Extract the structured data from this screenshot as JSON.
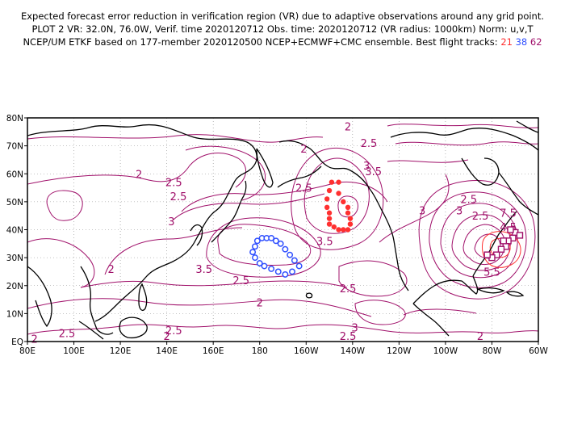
{
  "header": {
    "line1": "Expected forecast error reduction in verification region (VR) due to adaptive observations around any grid point.",
    "line2": "PLOT 2 VR: 32.0N, 76.0W, Verif. time 2020120712 Obs. time: 2020120712 (VR radius: 1000km) Norm: u,v,T",
    "line3_prefix": "NCEP/UM ETKF based on 177-member 2020120500 NCEP+ECMWF+CMC ensemble. Best flight tracks: ",
    "track_red": "21",
    "track_blue": "38",
    "track_purple": "62"
  },
  "map": {
    "lat_labels": [
      "80N",
      "70N",
      "60N",
      "50N",
      "40N",
      "30N",
      "20N",
      "10N",
      "EQ"
    ],
    "lon_labels": [
      "80E",
      "100E",
      "120E",
      "140E",
      "160E",
      "180",
      "160W",
      "140W",
      "120W",
      "100W",
      "80W",
      "60W"
    ],
    "colors": {
      "contour": "#a0106a",
      "coast": "#000000",
      "grid": "#888888",
      "track_red": "#ff3030",
      "track_blue": "#3050ff",
      "track_purple": "#a0106a"
    },
    "contour_labels": [
      {
        "text": "2",
        "lon": 218,
        "lat": 77
      },
      {
        "text": "2.5",
        "lon": 227,
        "lat": 71
      },
      {
        "text": "2",
        "lon": 199,
        "lat": 69
      },
      {
        "text": "3",
        "lon": 226,
        "lat": 63
      },
      {
        "text": "3.5",
        "lon": 229,
        "lat": 61
      },
      {
        "text": "2",
        "lon": 128,
        "lat": 60
      },
      {
        "text": "2.5",
        "lon": 143,
        "lat": 57
      },
      {
        "text": "2.5",
        "lon": 145,
        "lat": 52
      },
      {
        "text": "2.5",
        "lon": 199,
        "lat": 55
      },
      {
        "text": "2.5",
        "lon": 270,
        "lat": 51
      },
      {
        "text": "3",
        "lon": 142,
        "lat": 43
      },
      {
        "text": "3",
        "lon": 250,
        "lat": 47
      },
      {
        "text": "2.5",
        "lon": 275,
        "lat": 45
      },
      {
        "text": "3",
        "lon": 266,
        "lat": 47
      },
      {
        "text": "7.5",
        "lon": 287,
        "lat": 46
      },
      {
        "text": "4.5",
        "lon": 287,
        "lat": 41
      },
      {
        "text": "3.5",
        "lon": 208,
        "lat": 36
      },
      {
        "text": "3.5",
        "lon": 156,
        "lat": 26
      },
      {
        "text": "2",
        "lon": 116,
        "lat": 26
      },
      {
        "text": "2.5",
        "lon": 172,
        "lat": 22
      },
      {
        "text": "5.5",
        "lon": 280,
        "lat": 25
      },
      {
        "text": "2.5",
        "lon": 218,
        "lat": 19
      },
      {
        "text": "2",
        "lon": 180,
        "lat": 14
      },
      {
        "text": "2.5",
        "lon": 143,
        "lat": 4
      },
      {
        "text": "2.5",
        "lon": 97,
        "lat": 3
      },
      {
        "text": "2",
        "lon": 83,
        "lat": 1
      },
      {
        "text": "2",
        "lon": 140,
        "lat": 2
      },
      {
        "text": "3",
        "lon": 221,
        "lat": 5
      },
      {
        "text": "2.5",
        "lon": 218,
        "lat": 2
      },
      {
        "text": "2",
        "lon": 275,
        "lat": 2
      }
    ],
    "red_track": [
      {
        "lon": 211,
        "lat": 57
      },
      {
        "lon": 214,
        "lat": 57
      },
      {
        "lon": 210,
        "lat": 54
      },
      {
        "lon": 214,
        "lat": 53
      },
      {
        "lon": 209,
        "lat": 51
      },
      {
        "lon": 216,
        "lat": 50
      },
      {
        "lon": 209,
        "lat": 48
      },
      {
        "lon": 218,
        "lat": 48
      },
      {
        "lon": 210,
        "lat": 46
      },
      {
        "lon": 218,
        "lat": 46
      },
      {
        "lon": 210,
        "lat": 44
      },
      {
        "lon": 219,
        "lat": 44
      },
      {
        "lon": 210,
        "lat": 42
      },
      {
        "lon": 219,
        "lat": 42
      },
      {
        "lon": 212,
        "lat": 41
      },
      {
        "lon": 218,
        "lat": 40
      },
      {
        "lon": 214,
        "lat": 40
      },
      {
        "lon": 216,
        "lat": 40
      }
    ],
    "blue_track": [
      {
        "lon": 179,
        "lat": 36
      },
      {
        "lon": 181,
        "lat": 37
      },
      {
        "lon": 183,
        "lat": 37
      },
      {
        "lon": 185,
        "lat": 37
      },
      {
        "lon": 187,
        "lat": 36
      },
      {
        "lon": 189,
        "lat": 35
      },
      {
        "lon": 191,
        "lat": 33
      },
      {
        "lon": 193,
        "lat": 31
      },
      {
        "lon": 195,
        "lat": 29
      },
      {
        "lon": 197,
        "lat": 27
      },
      {
        "lon": 178,
        "lat": 34
      },
      {
        "lon": 177,
        "lat": 32
      },
      {
        "lon": 178,
        "lat": 30
      },
      {
        "lon": 180,
        "lat": 28
      },
      {
        "lon": 182,
        "lat": 27
      },
      {
        "lon": 185,
        "lat": 26
      },
      {
        "lon": 188,
        "lat": 25
      },
      {
        "lon": 191,
        "lat": 24
      },
      {
        "lon": 194,
        "lat": 25
      }
    ],
    "purple_track": [
      {
        "lon": 290,
        "lat": 39
      },
      {
        "lon": 288,
        "lat": 40
      },
      {
        "lon": 292,
        "lat": 38
      },
      {
        "lon": 289,
        "lat": 37
      },
      {
        "lon": 287,
        "lat": 36
      },
      {
        "lon": 286,
        "lat": 34
      },
      {
        "lon": 284,
        "lat": 33
      },
      {
        "lon": 282,
        "lat": 31
      },
      {
        "lon": 280,
        "lat": 30
      },
      {
        "lon": 278,
        "lat": 31
      },
      {
        "lon": 285,
        "lat": 36
      }
    ]
  }
}
